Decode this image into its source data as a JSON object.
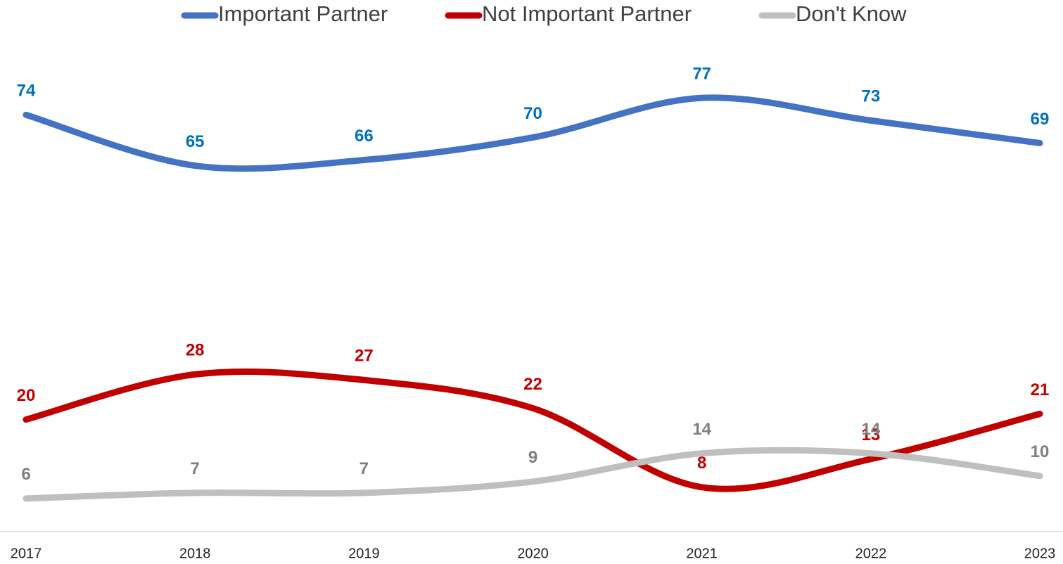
{
  "chart_data": {
    "type": "line",
    "categories": [
      "2017",
      "2018",
      "2019",
      "2020",
      "2021",
      "2022",
      "2023"
    ],
    "series": [
      {
        "name": "Important Partner",
        "color": "#4472c4",
        "label_color": "#0070c0",
        "values": [
          74,
          65,
          66,
          70,
          77,
          73,
          69
        ]
      },
      {
        "name": "Not Important Partner",
        "color": "#c00000",
        "label_color": "#c00000",
        "values": [
          20,
          28,
          27,
          22,
          8,
          13,
          21
        ]
      },
      {
        "name": "Don't Know",
        "color": "#bfbfbf",
        "label_color": "#7f7f7f",
        "values": [
          6,
          7,
          7,
          9,
          14,
          14,
          10
        ]
      }
    ],
    "ylim": [
      0,
      90
    ],
    "smooth": true,
    "legend": "top"
  }
}
